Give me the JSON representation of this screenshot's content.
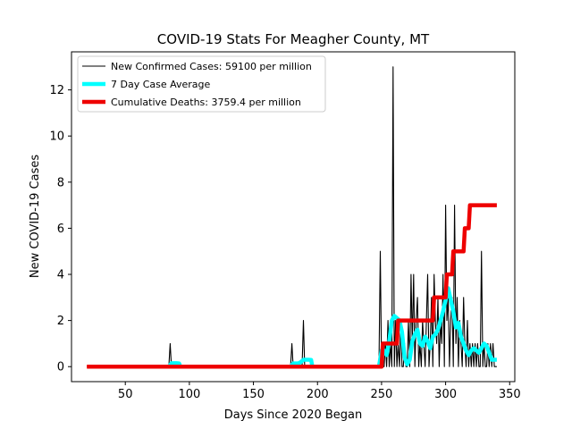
{
  "chart_data": {
    "type": "line",
    "title": "COVID-19 Stats For Meagher County, MT",
    "xlabel": "Days Since 2020 Began",
    "ylabel": "New COVID-19 Cases",
    "xlim": [
      8,
      354
    ],
    "ylim": [
      -0.65,
      13.65
    ],
    "xticks": [
      50,
      100,
      150,
      200,
      250,
      300,
      350
    ],
    "yticks": [
      0,
      2,
      4,
      6,
      8,
      10,
      12
    ],
    "grid": false,
    "legend_position": "top-left",
    "series": [
      {
        "name": "New Confirmed Cases: 59100 per million",
        "color": "#000000",
        "line_width": "thin",
        "x": [
          20,
          84,
          85,
          86,
          179,
          180,
          181,
          188,
          189,
          190,
          248,
          249,
          250,
          252,
          253,
          254,
          255,
          256,
          257,
          258,
          259,
          260,
          261,
          262,
          263,
          264,
          265,
          266,
          267,
          268,
          269,
          270,
          271,
          272,
          273,
          274,
          275,
          276,
          277,
          278,
          279,
          280,
          281,
          282,
          283,
          284,
          285,
          286,
          287,
          288,
          289,
          290,
          291,
          292,
          293,
          294,
          295,
          296,
          297,
          298,
          299,
          300,
          301,
          302,
          303,
          304,
          305,
          306,
          307,
          308,
          309,
          310,
          311,
          312,
          313,
          314,
          315,
          316,
          317,
          318,
          319,
          320,
          321,
          322,
          323,
          324,
          325,
          326,
          327,
          328,
          329,
          330,
          331,
          332,
          333,
          334,
          335,
          336,
          337,
          338,
          339,
          340
        ],
        "y": [
          0,
          0,
          1,
          0,
          0,
          1,
          0,
          0,
          2,
          0,
          0,
          5,
          0,
          0,
          1,
          0,
          2,
          0,
          1,
          0,
          13,
          0,
          2,
          0,
          1,
          0,
          2,
          0,
          0,
          1,
          0,
          0,
          2,
          0,
          4,
          1,
          4,
          0,
          2,
          3,
          0,
          1,
          0,
          2,
          1,
          0,
          2,
          4,
          0,
          1,
          3,
          0,
          4,
          2,
          1,
          3,
          0,
          2,
          1,
          4,
          0,
          7,
          2,
          3,
          0,
          2,
          3,
          0,
          7,
          1,
          3,
          0,
          2,
          1,
          0,
          3,
          1,
          0,
          2,
          0,
          1,
          0,
          1,
          0,
          1,
          0,
          1,
          0,
          0,
          5,
          0,
          1,
          0,
          0,
          1,
          0,
          1,
          0,
          1,
          0,
          0,
          0
        ]
      },
      {
        "name": "7 Day Case Average",
        "color": "#00ffff",
        "line_width": "thick",
        "x": [
          84,
          86,
          88,
          90,
          92,
          93,
          179,
          181,
          183,
          185,
          187,
          189,
          191,
          193,
          195,
          196,
          248,
          250,
          252,
          254,
          256,
          258,
          260,
          262,
          264,
          266,
          268,
          270,
          272,
          274,
          276,
          278,
          280,
          282,
          284,
          286,
          288,
          290,
          292,
          294,
          296,
          298,
          300,
          302,
          304,
          306,
          308,
          310,
          312,
          314,
          316,
          318,
          320,
          322,
          324,
          326,
          328,
          330,
          332,
          334,
          336,
          338,
          340
        ],
        "y": [
          0,
          0.15,
          0.15,
          0.15,
          0.14,
          0,
          0,
          0.14,
          0.14,
          0.14,
          0.2,
          0.3,
          0.3,
          0.3,
          0.29,
          0,
          0,
          0.7,
          0.7,
          0.5,
          1.1,
          2,
          2.2,
          2.1,
          2,
          1.5,
          0.4,
          0.1,
          0.3,
          1.1,
          1.4,
          1.6,
          1,
          0.9,
          1.3,
          1.1,
          0.8,
          1.3,
          1.4,
          1.6,
          2,
          2.4,
          2.9,
          3.4,
          2.9,
          2.4,
          1.7,
          1.9,
          1.3,
          1.0,
          0.7,
          0.5,
          0.7,
          0.8,
          0.7,
          0.6,
          0.8,
          1,
          0.9,
          0.6,
          0.3,
          0.3,
          0.3
        ]
      },
      {
        "name": "Cumulative Deaths: 3759.4 per million",
        "color": "#ee0000",
        "line_width": "thick",
        "x": [
          20,
          250,
          251,
          262,
          263,
          290,
          291,
          300,
          301,
          305,
          306,
          314,
          315,
          318,
          319,
          340
        ],
        "y": [
          0,
          0,
          1,
          1,
          2,
          2,
          3,
          3,
          4,
          4,
          5,
          5,
          6,
          6,
          7,
          7
        ]
      }
    ]
  }
}
